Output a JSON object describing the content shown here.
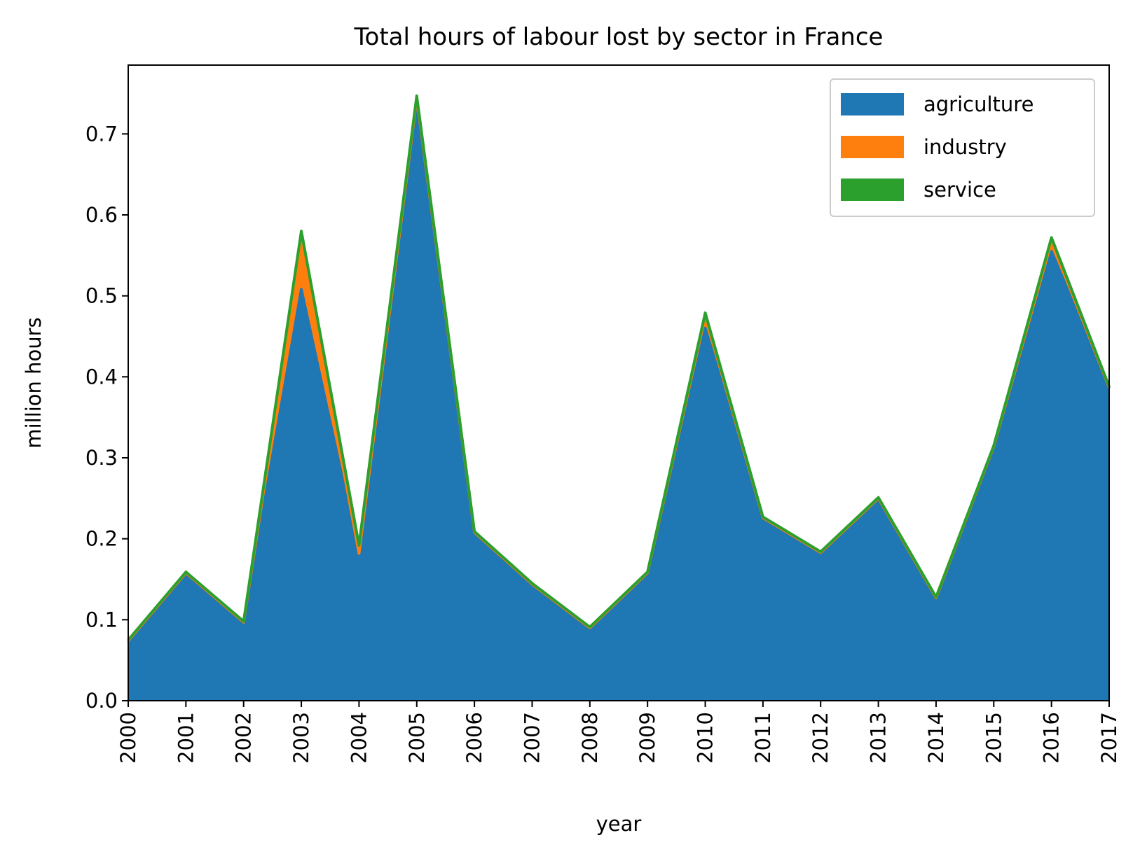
{
  "chart_data": {
    "type": "area",
    "stacked": true,
    "title": "Total hours of labour lost by sector in France",
    "xlabel": "year",
    "ylabel": "million hours",
    "x": [
      2000,
      2001,
      2002,
      2003,
      2004,
      2005,
      2006,
      2007,
      2008,
      2009,
      2010,
      2011,
      2012,
      2013,
      2014,
      2015,
      2016,
      2017
    ],
    "x_tick_labels": [
      "2000",
      "2001",
      "2002",
      "2003",
      "2004",
      "2005",
      "2006",
      "2007",
      "2008",
      "2009",
      "2010",
      "2011",
      "2012",
      "2013",
      "2014",
      "2015",
      "2016",
      "2017"
    ],
    "xlim": [
      2000,
      2017
    ],
    "ylim": [
      0,
      0.785
    ],
    "y_ticks": [
      0.0,
      0.1,
      0.2,
      0.3,
      0.4,
      0.5,
      0.6,
      0.7
    ],
    "y_tick_labels": [
      "0.0",
      "0.1",
      "0.2",
      "0.3",
      "0.4",
      "0.5",
      "0.6",
      "0.7"
    ],
    "grid": false,
    "legend_position": "top-right",
    "series": [
      {
        "name": "agriculture",
        "color": "#1f77b4",
        "values": [
          0.072,
          0.157,
          0.096,
          0.508,
          0.18,
          0.74,
          0.207,
          0.143,
          0.089,
          0.157,
          0.46,
          0.225,
          0.182,
          0.249,
          0.126,
          0.313,
          0.555,
          0.386
        ]
      },
      {
        "name": "industry",
        "color": "#ff7f0e",
        "values": [
          0.002,
          0.001,
          0.001,
          0.057,
          0.002,
          0.004,
          0.001,
          0.001,
          0.001,
          0.001,
          0.015,
          0.001,
          0.001,
          0.001,
          0.001,
          0.001,
          0.012,
          0.001
        ]
      },
      {
        "name": "service",
        "color": "#2ca02c",
        "values": [
          0.001,
          0.001,
          0.001,
          0.015,
          0.01,
          0.003,
          0.001,
          0.001,
          0.001,
          0.001,
          0.004,
          0.001,
          0.001,
          0.001,
          0.001,
          0.001,
          0.005,
          0.001
        ]
      }
    ]
  }
}
